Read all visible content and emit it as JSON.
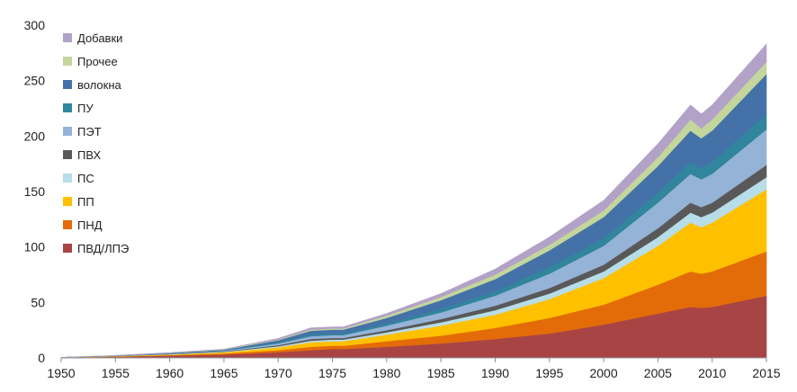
{
  "chart_data": {
    "type": "area",
    "stacked": true,
    "title": "",
    "xlabel": "",
    "ylabel": "",
    "xlim": [
      1950,
      2015
    ],
    "ylim": [
      0,
      300
    ],
    "x_ticks": [
      1950,
      1955,
      1960,
      1965,
      1970,
      1975,
      1980,
      1985,
      1990,
      1995,
      2000,
      2005,
      2010,
      2015
    ],
    "y_ticks": [
      0,
      50,
      100,
      150,
      200,
      250,
      300
    ],
    "grid": false,
    "legend_position": "top-left",
    "x": [
      1950,
      1955,
      1960,
      1965,
      1970,
      1973,
      1975,
      1976,
      1980,
      1985,
      1990,
      1995,
      2000,
      2005,
      2008,
      2009,
      2010,
      2015
    ],
    "series": [
      {
        "name": "ПВД/ЛПЭ",
        "color": "#a84444",
        "values": [
          0.5,
          1,
          2,
          3,
          5,
          7,
          8,
          8,
          10,
          13,
          17,
          22,
          30,
          40,
          46,
          45,
          46,
          56
        ]
      },
      {
        "name": "ПНД",
        "color": "#e36c09",
        "values": [
          0,
          0.3,
          0.5,
          1,
          2,
          3,
          3,
          3,
          5,
          7,
          10,
          14,
          18,
          26,
          32,
          31,
          32,
          40
        ]
      },
      {
        "name": "ПП",
        "color": "#ffc000",
        "values": [
          0,
          0.2,
          0.5,
          1,
          2.5,
          4,
          4,
          4,
          6,
          9,
          12,
          17,
          24,
          35,
          44,
          42,
          44,
          56
        ]
      },
      {
        "name": "ПС",
        "color": "#b7dde8",
        "values": [
          0,
          0.1,
          0.3,
          0.5,
          1,
          1.5,
          1.5,
          1.5,
          2,
          3,
          4,
          5,
          6,
          8,
          9,
          9,
          9,
          11
        ]
      },
      {
        "name": "ПВХ",
        "color": "#595959",
        "values": [
          0,
          0.1,
          0.3,
          0.5,
          1,
          1.5,
          1.5,
          1.5,
          2,
          3,
          4,
          5,
          6,
          8,
          9,
          9,
          9,
          11
        ]
      },
      {
        "name": "ПЭТ",
        "color": "#95b3d7",
        "values": [
          0,
          0.1,
          0.3,
          0.5,
          1.5,
          2.5,
          2.5,
          2.5,
          4,
          6,
          9,
          13,
          17,
          23,
          26,
          25,
          26,
          32
        ]
      },
      {
        "name": "ПУ",
        "color": "#31859c",
        "values": [
          0,
          0.1,
          0.2,
          0.3,
          1,
          1.5,
          1.5,
          1.5,
          2,
          3,
          4,
          6,
          7,
          9,
          11,
          10,
          11,
          14
        ]
      },
      {
        "name": "волокна",
        "color": "#4472a8",
        "values": [
          0,
          0.1,
          0.3,
          0.5,
          2,
          3.5,
          3.5,
          3.5,
          5,
          8,
          11,
          15,
          19,
          24,
          28,
          27,
          28,
          36
        ]
      },
      {
        "name": "Прочее",
        "color": "#c3d69b",
        "values": [
          0,
          0.1,
          0.1,
          0.3,
          0.5,
          1,
          1,
          1,
          2,
          3,
          4,
          5,
          6,
          8,
          10,
          9,
          10,
          11
        ]
      },
      {
        "name": "Добавки",
        "color": "#b3a2c7",
        "values": [
          0,
          0.1,
          0.2,
          0.3,
          1,
          1.5,
          1.5,
          1.5,
          2,
          3,
          5,
          7,
          9,
          12,
          13,
          13,
          13,
          16
        ]
      }
    ]
  }
}
